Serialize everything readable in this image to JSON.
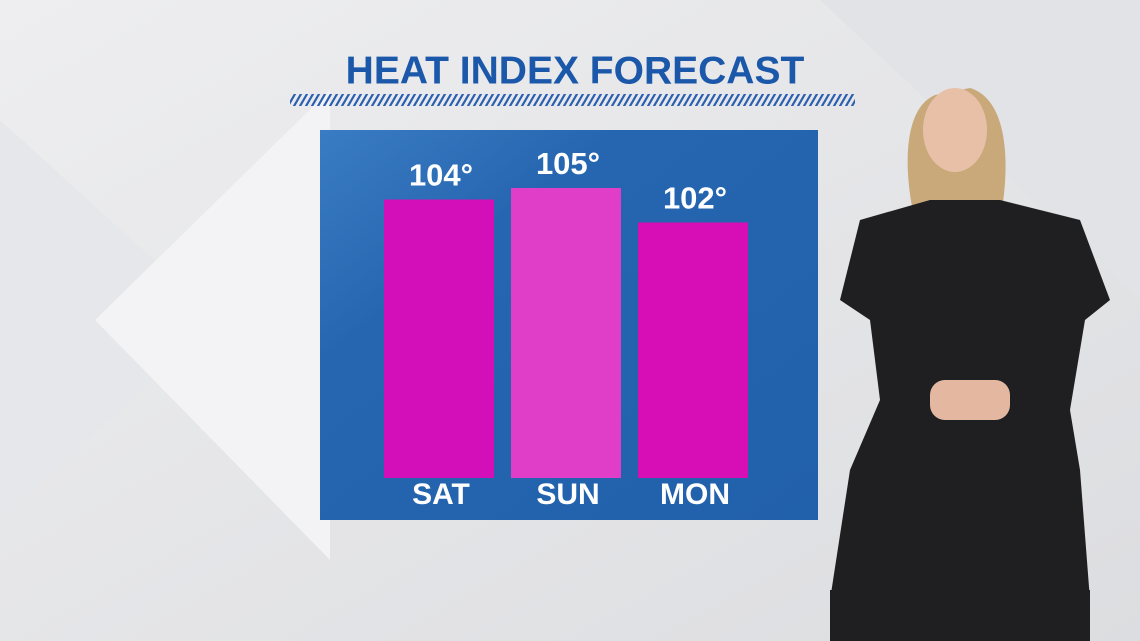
{
  "chart_data": {
    "type": "bar",
    "title": "HEAT INDEX FORECAST",
    "categories": [
      "SAT",
      "SUN",
      "MON"
    ],
    "values": [
      104,
      105,
      102
    ],
    "value_labels": [
      "104°",
      "105°",
      "102°"
    ],
    "colors": [
      "#d30fba",
      "#e03ec9",
      "#d70db6"
    ]
  }
}
